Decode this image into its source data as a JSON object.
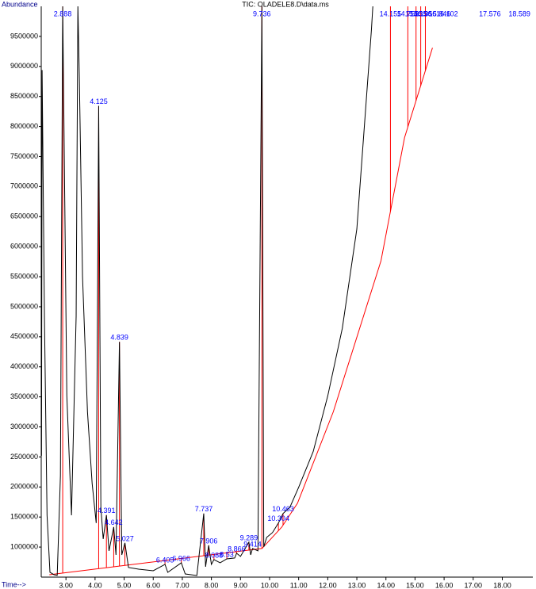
{
  "chart_data": {
    "type": "line",
    "title": "TIC: OLADELE8.D\\data.ms",
    "y_label": "Abundance",
    "x_label": "Time-->",
    "xlim": [
      2.15,
      19.05
    ],
    "ylim": [
      500000,
      10000000
    ],
    "xticks": [
      {
        "value": 3,
        "label": "3.00"
      },
      {
        "value": 4,
        "label": "4.00"
      },
      {
        "value": 5,
        "label": "5.00"
      },
      {
        "value": 6,
        "label": "6.00"
      },
      {
        "value": 7,
        "label": "7.00"
      },
      {
        "value": 8,
        "label": "8.00"
      },
      {
        "value": 9,
        "label": "9.00"
      },
      {
        "value": 10,
        "label": "10.00"
      },
      {
        "value": 11,
        "label": "11.00"
      },
      {
        "value": 12,
        "label": "12.00"
      },
      {
        "value": 13,
        "label": "13.00"
      },
      {
        "value": 14,
        "label": "14.00"
      },
      {
        "value": 15,
        "label": "15.00"
      },
      {
        "value": 16,
        "label": "16.00"
      },
      {
        "value": 17,
        "label": "17.00"
      },
      {
        "value": 18,
        "label": "18.00"
      }
    ],
    "yticks": [
      1000000,
      1500000,
      2000000,
      2500000,
      3000000,
      3500000,
      4000000,
      4500000,
      5000000,
      5500000,
      6000000,
      6500000,
      7000000,
      7500000,
      8000000,
      8500000,
      9000000,
      9500000
    ],
    "color": "#000000",
    "x": [
      2.16,
      2.18,
      2.26,
      2.35,
      2.45,
      2.59,
      2.7,
      2.81,
      2.888,
      3.03,
      3.19,
      3.35,
      3.41,
      3.46,
      3.57,
      3.74,
      3.9,
      4.04,
      4.125,
      4.2,
      4.28,
      4.391,
      4.48,
      4.642,
      4.72,
      4.839,
      4.92,
      5.027,
      5.15,
      5.5,
      6.0,
      6.405,
      6.5,
      6.966,
      7.1,
      7.5,
      7.737,
      7.8,
      7.906,
      8.0,
      8.088,
      8.3,
      8.53,
      8.8,
      8.866,
      9.0,
      9.289,
      9.35,
      9.414,
      9.6,
      9.736,
      9.8,
      9.9,
      10.1,
      10.304,
      10.463,
      10.7,
      11.0,
      11.5,
      12.0,
      12.5,
      13.0,
      13.5,
      13.55
    ],
    "values": [
      2520000,
      8940000,
      4840000,
      1530000,
      580000,
      540000,
      530000,
      2190000,
      10000000,
      3520000,
      1530000,
      4840000,
      10000000,
      8810000,
      5500000,
      3250000,
      2060000,
      1400000,
      8344000,
      1660000,
      1135000,
      1532000,
      936000,
      1333000,
      870000,
      4415000,
      870000,
      1069000,
      660000,
      632000,
      606000,
      712000,
      579000,
      738000,
      553000,
      527000,
      1558000,
      672000,
      1029000,
      712000,
      791000,
      738000,
      804000,
      818000,
      897000,
      844000,
      1082000,
      870000,
      976000,
      937000,
      10000000,
      1003000,
      1161000,
      1241000,
      1400000,
      1558000,
      1664000,
      1995000,
      2590000,
      3516000,
      4640000,
      6294000,
      9601000,
      10000000
    ],
    "baseline_color": "#ff0000",
    "baseline_x": [
      2.43,
      9.74,
      10.42,
      10.96,
      12.19,
      13.83,
      14.64,
      15.6
    ],
    "baseline": [
      540000,
      976000,
      1333000,
      1730000,
      3251000,
      5765000,
      7815000,
      9310000
    ],
    "peak_color": "#0000ff",
    "peaks": [
      {
        "rt": 2.888,
        "apex": 10000000
      },
      {
        "rt": 4.125,
        "apex": 8344000
      },
      {
        "rt": 4.391,
        "apex": 1532000
      },
      {
        "rt": 4.642,
        "apex": 1333000
      },
      {
        "rt": 4.839,
        "apex": 4415000
      },
      {
        "rt": 5.027,
        "apex": 1069000
      },
      {
        "rt": 6.405,
        "apex": 712000
      },
      {
        "rt": 6.966,
        "apex": 738000
      },
      {
        "rt": 7.737,
        "apex": 1558000
      },
      {
        "rt": 7.906,
        "apex": 1029000
      },
      {
        "rt": 8.088,
        "apex": 791000
      },
      {
        "rt": 8.53,
        "apex": 804000
      },
      {
        "rt": 8.866,
        "apex": 897000
      },
      {
        "rt": 9.289,
        "apex": 1082000
      },
      {
        "rt": 9.414,
        "apex": 976000
      },
      {
        "rt": 9.736,
        "apex": 10000000
      },
      {
        "rt": 10.304,
        "apex": 1400000
      },
      {
        "rt": 10.463,
        "apex": 1558000
      },
      {
        "rt": 14.155,
        "apex": 10000000
      },
      {
        "rt": 14.753,
        "apex": 10000000
      },
      {
        "rt": 15.035,
        "apex": 10000000
      },
      {
        "rt": 15.196,
        "apex": 10000000
      },
      {
        "rt": 15.356,
        "apex": 10000000
      },
      {
        "rt": 15.846,
        "apex": 10000000
      },
      {
        "rt": 16.102,
        "apex": 10000000
      },
      {
        "rt": 17.576,
        "apex": 10000000
      },
      {
        "rt": 18.589,
        "apex": 10000000
      }
    ]
  }
}
